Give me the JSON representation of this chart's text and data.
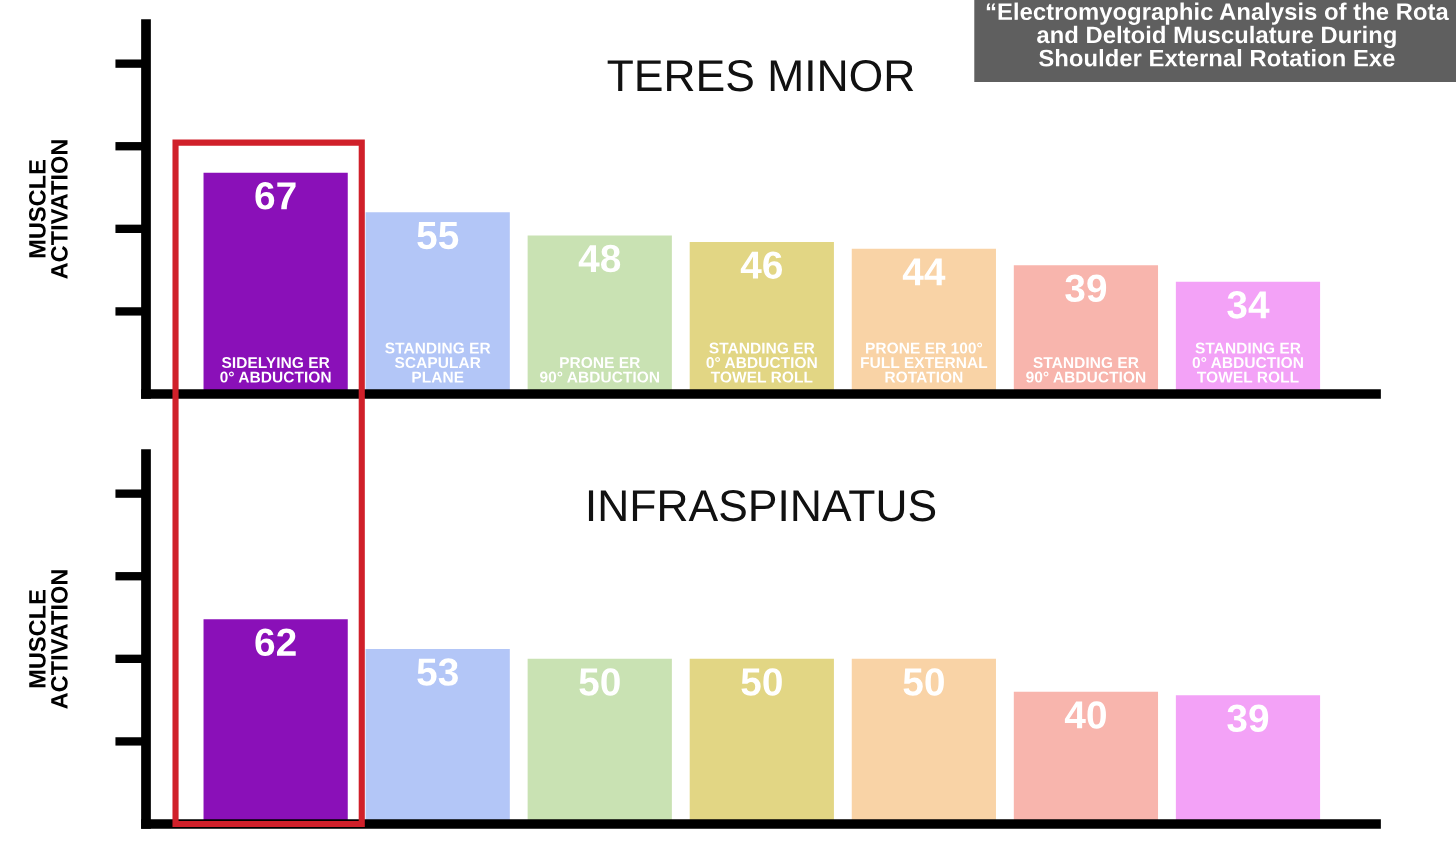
{
  "chart_data": [
    {
      "type": "bar",
      "title": "TERES MINOR",
      "ylabel": "MUSCLE\nACTIVATION",
      "categories": [
        "SIDELYING ER\n0° ABDUCTION",
        "STANDING ER\nSCAPULAR\nPLANE",
        "PRONE ER\n90° ABDUCTION",
        "STANDING ER\n0° ABDUCTION\nTOWEL ROLL",
        "PRONE ER 100°\nFULL EXTERNAL\nROTATION",
        "STANDING ER\n90° ABDUCTION",
        "STANDING ER\n0° ABDUCTION\nTOWEL ROLL"
      ],
      "values": [
        67,
        55,
        48,
        46,
        44,
        39,
        34
      ],
      "colors": [
        "#8a10b8",
        "#b3c6f7",
        "#c9e2b3",
        "#e2d684",
        "#f9d3a6",
        "#f8b5ad",
        "#f3a2f7"
      ],
      "data_labels": true,
      "ylim": [
        0,
        112
      ],
      "yticks": [
        {
          "value": 25,
          "label": null
        },
        {
          "value": 50,
          "label": null
        },
        {
          "value": 75,
          "label": null
        },
        {
          "value": 100,
          "label": null
        }
      ],
      "annotations": [
        "“Electromyographic Analysis of the Rota\nand Deltoid Musculature During\nShoulder External Rotation Exe"
      ]
    },
    {
      "type": "bar",
      "title": "INFRASPINATUS",
      "ylabel": "MUSCLE\nACTIVATION",
      "categories": [
        null,
        null,
        null,
        null,
        null,
        null,
        null
      ],
      "values": [
        62,
        53,
        50,
        50,
        50,
        40,
        39
      ],
      "colors": [
        "#8a10b8",
        "#b3c6f7",
        "#c9e2b3",
        "#e2d684",
        "#f9d3a6",
        "#f8b5ad",
        "#f3a2f7"
      ],
      "data_labels": true,
      "ylim": [
        0,
        112
      ],
      "yticks": [
        {
          "value": 25,
          "label": null
        },
        {
          "value": 50,
          "label": null
        },
        {
          "value": 75,
          "label": null
        },
        {
          "value": 100,
          "label": null
        }
      ]
    }
  ]
}
